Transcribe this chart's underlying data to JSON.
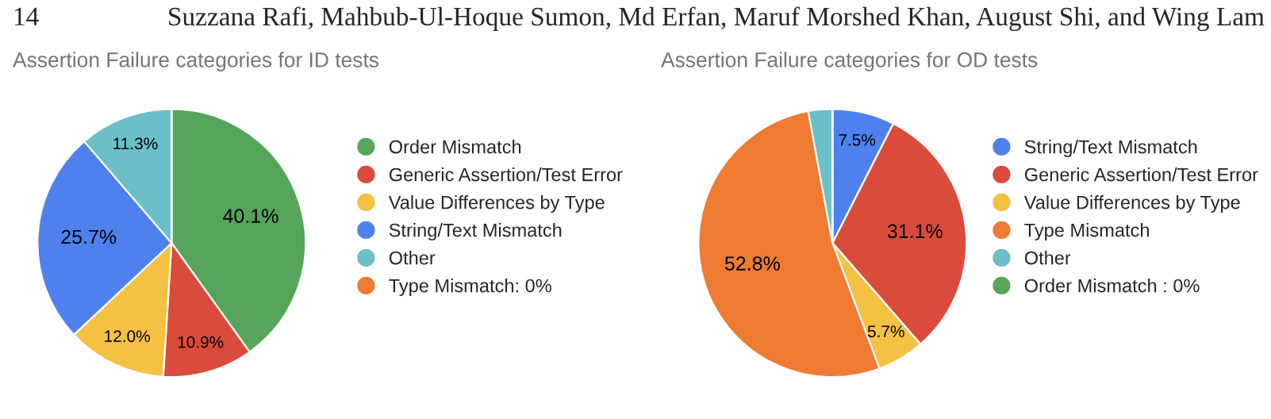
{
  "chart_data": [
    {
      "type": "pie",
      "title": "Assertion Failure categories for ID tests",
      "annotations": [
        "14",
        "Suzzana Rafi, Mahbub-Ul-Hoque Sumon, Md Erfan, Maruf Morshed Khan, August Shi, and Wing Lam"
      ],
      "categories": [
        "Order Mismatch",
        "Generic Assertion/Test Error",
        "Value Differences by Type",
        "String/Text Mismatch",
        "Other",
        "Type Mismatch: 0%"
      ],
      "values": [
        40.1,
        10.9,
        12.0,
        25.7,
        11.3,
        0
      ],
      "colors": [
        "#57a55a",
        "#db4b3c",
        "#f4c143",
        "#4f81ee",
        "#6bbfc9",
        "#ee7b31"
      ],
      "value_labels": [
        "40.1%",
        "10.9%",
        "12.0%",
        "25.7%",
        "11.3%",
        null
      ],
      "legend": "right"
    },
    {
      "type": "pie",
      "title": "Assertion Failure categories for OD tests",
      "categories": [
        "String/Text Mismatch",
        "Generic Assertion/Test Error",
        "Value Differences by Type",
        "Type Mismatch",
        "Other",
        "Order Mismatch : 0%"
      ],
      "values": [
        7.5,
        31.1,
        5.7,
        52.8,
        2.9,
        0
      ],
      "colors": [
        "#4f81ee",
        "#db4b3c",
        "#f4c143",
        "#ee7b31",
        "#6bbfc9",
        "#57a55a"
      ],
      "value_labels": [
        "7.5%",
        "31.1%",
        "5.7%",
        "52.8%",
        null,
        null
      ],
      "legend": "right"
    }
  ]
}
